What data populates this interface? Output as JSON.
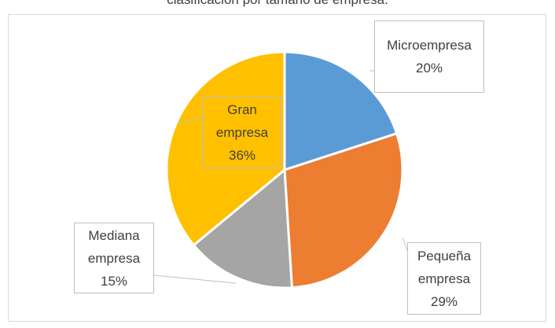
{
  "chart_data": {
    "type": "pie",
    "title": "clasificación por tamaño de empresa.",
    "categories": [
      "Microempresa",
      "Pequeña empresa",
      "Mediana empresa",
      "Gran empresa"
    ],
    "values": [
      20,
      29,
      15,
      36
    ],
    "value_labels": [
      "20%",
      "29%",
      "15%",
      "36%"
    ],
    "colors": [
      "#5b9bd5",
      "#ed7d31",
      "#a5a5a5",
      "#ffc000"
    ]
  }
}
